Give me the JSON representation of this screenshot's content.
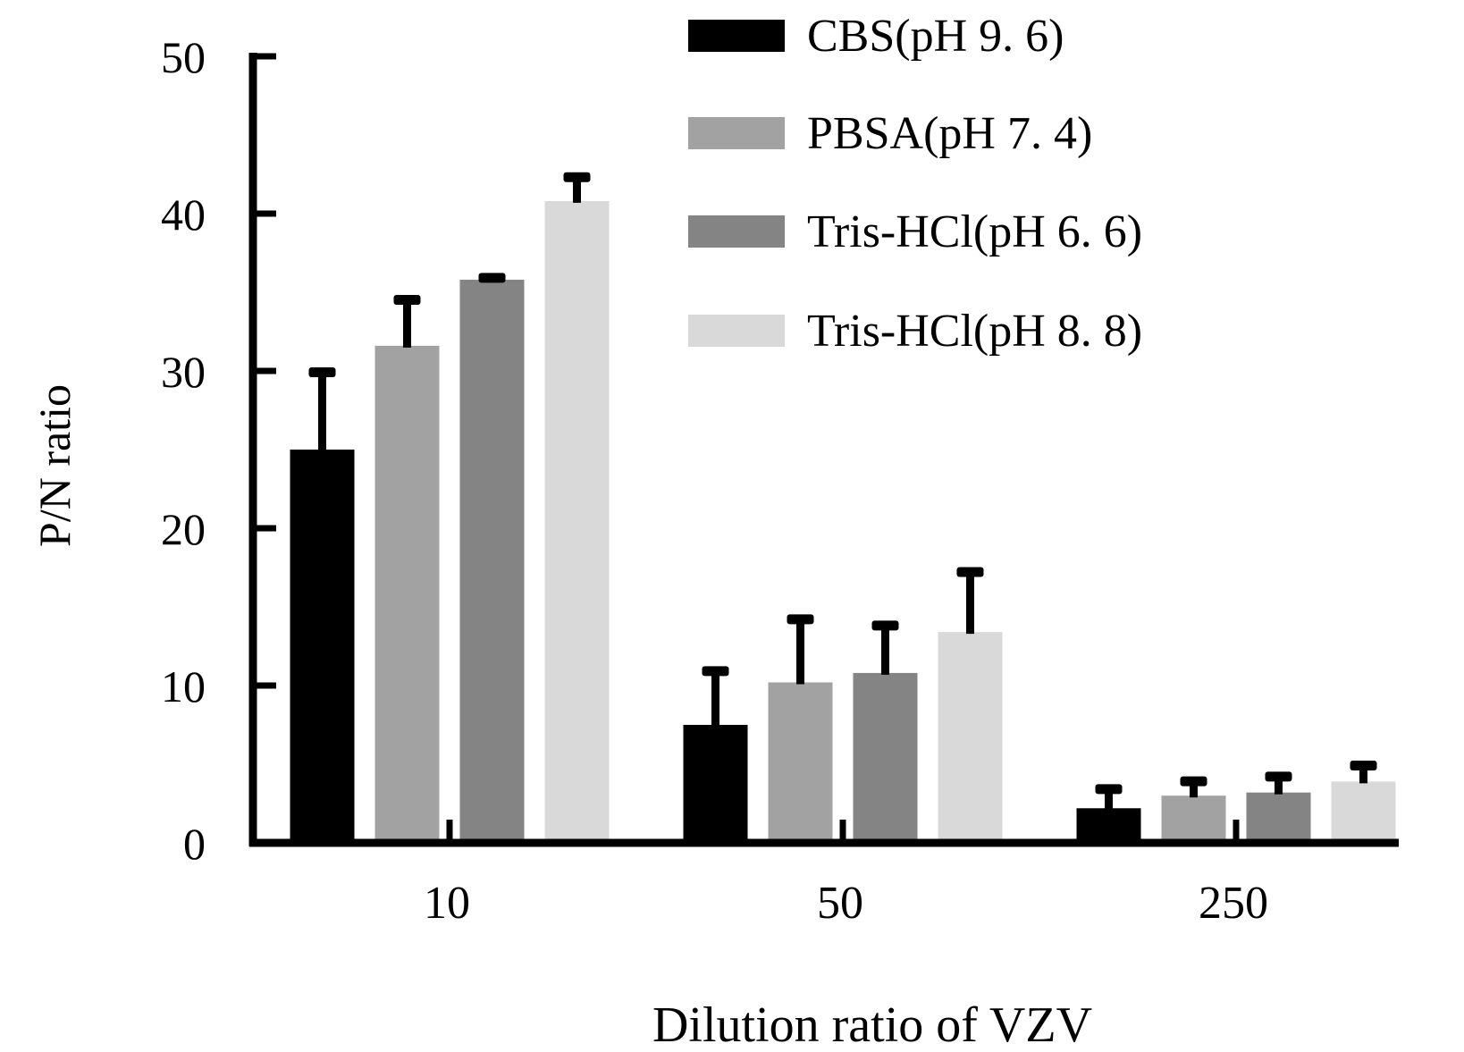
{
  "chart_data": {
    "type": "bar",
    "title": "",
    "xlabel": "Dilution ratio of VZV",
    "ylabel": "P/N ratio",
    "ylim": [
      0,
      50
    ],
    "yticks": [
      0,
      10,
      20,
      30,
      40,
      50
    ],
    "ytick_labels": [
      "0",
      "10",
      "20",
      "30",
      "40",
      "50"
    ],
    "categories": [
      "10",
      "50",
      "250"
    ],
    "grid": false,
    "legend_position": "top-right",
    "error_bars": "upper only",
    "series": [
      {
        "name": "CBS(pH 9. 6)",
        "color": "#000000",
        "values": [
          25.0,
          7.5,
          2.2
        ],
        "errors": [
          5.0,
          3.5,
          1.3
        ]
      },
      {
        "name": "PBSA(pH 7. 4)",
        "color": "#a2a2a2",
        "values": [
          31.6,
          10.2,
          3.0
        ],
        "errors": [
          3.0,
          4.1,
          1.0
        ]
      },
      {
        "name": "Tris-HCl(pH 6. 6)",
        "color": "#848484",
        "values": [
          35.8,
          10.8,
          3.2
        ],
        "errors": [
          0.2,
          3.1,
          1.1
        ]
      },
      {
        "name": "Tris-HCl(pH 8. 8)",
        "color": "#d9d9d9",
        "values": [
          40.8,
          13.4,
          3.9
        ],
        "errors": [
          1.6,
          3.9,
          1.1
        ]
      }
    ]
  }
}
